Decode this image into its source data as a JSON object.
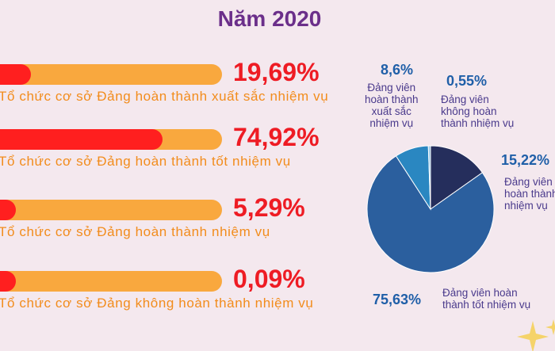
{
  "header": {
    "title": "Năm 2020"
  },
  "chart_data": [
    {
      "type": "bar",
      "orientation": "horizontal-progress",
      "categories": [
        "Tổ chức cơ sở Đảng hoàn thành xuất sắc nhiệm vụ",
        "Tổ chức cơ sở Đảng hoàn thành tốt nhiệm vụ",
        "Tổ chức cơ sở Đảng hoàn thành nhiệm vụ",
        "Tổ chức cơ sở Đảng không hoàn thành nhiệm vụ"
      ],
      "values": [
        19.69,
        74.92,
        5.29,
        0.09
      ],
      "value_labels": [
        "19,69%",
        "74,92%",
        "5,29%",
        "0,09%"
      ],
      "ylim": [
        0,
        100
      ],
      "colors": {
        "track": "#f9a83e",
        "fill": "#ff1f1f",
        "value_text": "#ee1c24",
        "label_text": "#f28c1c"
      }
    },
    {
      "type": "pie",
      "slices": [
        {
          "value": 15.22,
          "pct_label": "15,22%",
          "label": [
            "Đảng viên",
            "hoàn thành",
            "nhiệm vụ"
          ],
          "color": "#252e5c"
        },
        {
          "value": 75.63,
          "pct_label": "75,63%",
          "label": [
            "Đảng viên hoàn",
            "thành tốt nhiệm vụ"
          ],
          "color": "#2b5f9e"
        },
        {
          "value": 8.6,
          "pct_label": "8,6%",
          "label": [
            "Đảng viên",
            "hoàn thành",
            "xuất sắc",
            "nhiệm vụ"
          ],
          "color": "#2a87c1"
        },
        {
          "value": 0.55,
          "pct_label": "0,55%",
          "label": [
            "Đảng viên",
            "không hoàn",
            "thành nhiệm vụ"
          ],
          "color": "#8fc4e6"
        }
      ]
    }
  ]
}
